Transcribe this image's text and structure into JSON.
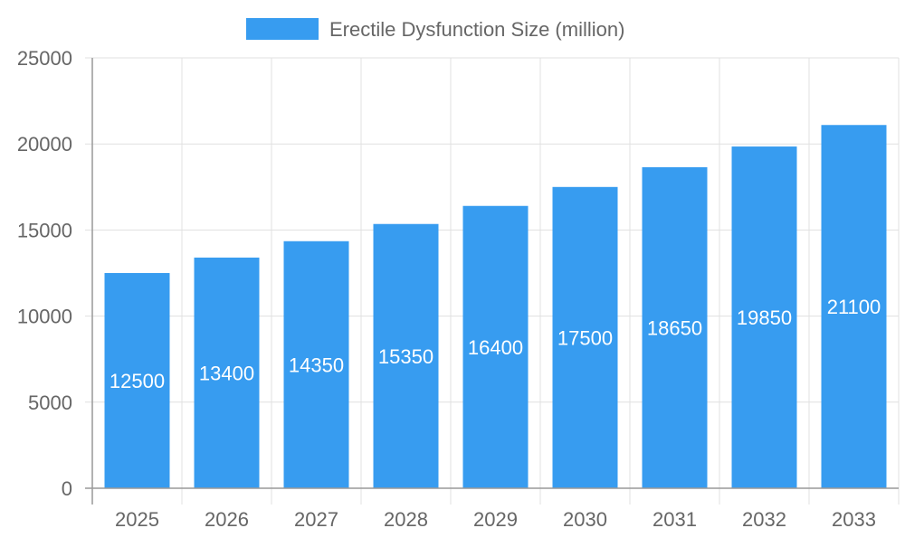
{
  "chart_data": {
    "type": "bar",
    "title": "",
    "xlabel": "",
    "ylabel": "",
    "categories": [
      "2025",
      "2026",
      "2027",
      "2028",
      "2029",
      "2030",
      "2031",
      "2032",
      "2033"
    ],
    "series": [
      {
        "name": "Erectile Dysfunction Size (million)",
        "values": [
          12500,
          13400,
          14350,
          15350,
          16400,
          17500,
          18650,
          19850,
          21100
        ],
        "color": "#379cf0"
      }
    ],
    "ylim": [
      0,
      25000
    ],
    "yticks": [
      0,
      5000,
      10000,
      15000,
      20000,
      25000
    ],
    "grid": true,
    "legend": "top",
    "data_labels": true
  }
}
